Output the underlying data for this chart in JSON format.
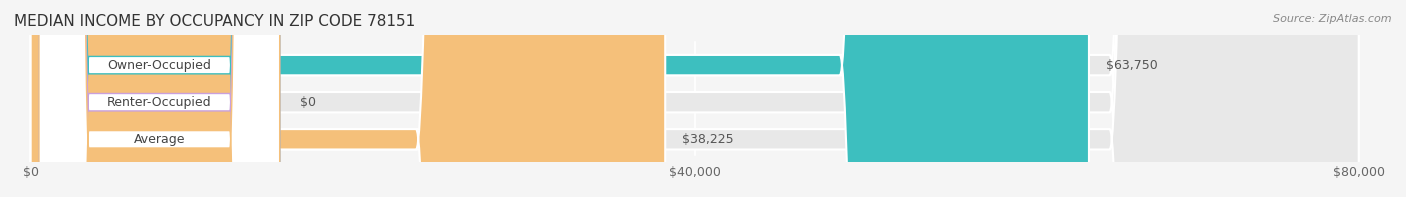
{
  "title": "MEDIAN INCOME BY OCCUPANCY IN ZIP CODE 78151",
  "source": "Source: ZipAtlas.com",
  "categories": [
    "Owner-Occupied",
    "Renter-Occupied",
    "Average"
  ],
  "values": [
    63750,
    0,
    38225
  ],
  "bar_colors": [
    "#3dbfbf",
    "#c9a0dc",
    "#f5c07a"
  ],
  "bar_labels": [
    "$63,750",
    "$0",
    "$38,225"
  ],
  "xlim": [
    0,
    80000
  ],
  "xticks": [
    0,
    40000,
    80000
  ],
  "xtick_labels": [
    "$0",
    "$40,000",
    "$80,000"
  ],
  "background_color": "#f5f5f5",
  "bar_bg_color": "#e8e8e8",
  "label_bg_color": "#ffffff",
  "title_fontsize": 11,
  "tick_fontsize": 9,
  "bar_label_fontsize": 9,
  "category_fontsize": 9,
  "source_fontsize": 8
}
